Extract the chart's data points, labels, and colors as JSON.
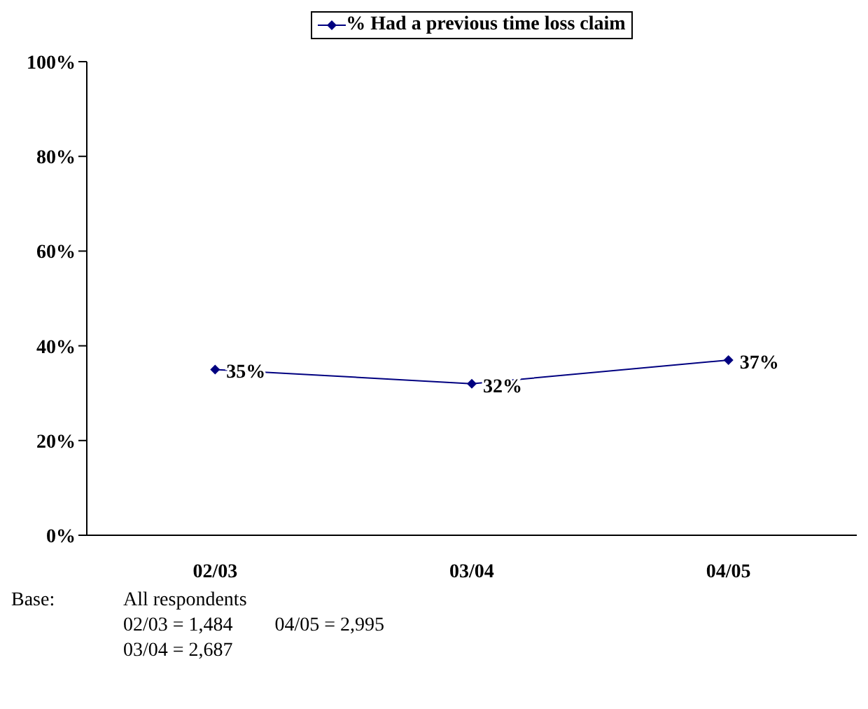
{
  "chart_data": {
    "type": "line",
    "categories": [
      "02/03",
      "03/04",
      "04/05"
    ],
    "series": [
      {
        "name": "% Had a previous time loss claim",
        "color": "#000080",
        "values": [
          35,
          32,
          37
        ],
        "value_labels": [
          "35%",
          "32%",
          "37%"
        ]
      }
    ],
    "ylim": [
      0,
      100
    ],
    "yticks": [
      {
        "value": 0,
        "label": "0%"
      },
      {
        "value": 20,
        "label": "20%"
      },
      {
        "value": 40,
        "label": "40%"
      },
      {
        "value": 60,
        "label": "60%"
      },
      {
        "value": 80,
        "label": "80%"
      },
      {
        "value": 100,
        "label": "100%"
      }
    ],
    "marker": "diamond",
    "grid": false,
    "legend": "top",
    "annotations": [
      "Base:",
      "All respondents",
      "02/03 = 1,484",
      "04/05 = 2,995",
      "03/04 = 2,687"
    ]
  }
}
